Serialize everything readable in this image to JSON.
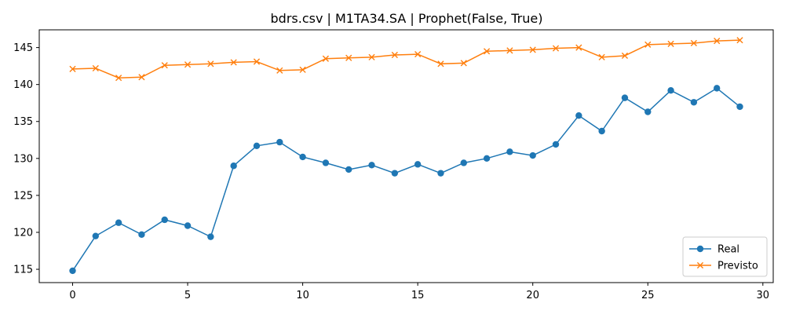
{
  "chart_data": {
    "type": "line",
    "title": "bdrs.csv | M1TA34.SA | Prophet(False, True)",
    "xlabel": "",
    "ylabel": "",
    "xlim": [
      -1.45,
      30.45
    ],
    "ylim": [
      113.2,
      147.4
    ],
    "xticks": [
      0,
      5,
      10,
      15,
      20,
      25,
      30
    ],
    "yticks": [
      115,
      120,
      125,
      130,
      135,
      140,
      145
    ],
    "grid": false,
    "legend_position": "lower-right",
    "x": [
      0,
      1,
      2,
      3,
      4,
      5,
      6,
      7,
      8,
      9,
      10,
      11,
      12,
      13,
      14,
      15,
      16,
      17,
      18,
      19,
      20,
      21,
      22,
      23,
      24,
      25,
      26,
      27,
      28,
      29
    ],
    "series": [
      {
        "name": "Real",
        "color": "#1f77b4",
        "marker": "circle",
        "values": [
          114.8,
          119.5,
          121.3,
          119.7,
          121.7,
          120.9,
          119.4,
          129.0,
          131.7,
          132.2,
          130.2,
          129.4,
          128.5,
          129.1,
          128.0,
          129.2,
          128.0,
          129.4,
          130.0,
          130.9,
          130.4,
          131.9,
          135.8,
          133.7,
          138.2,
          136.3,
          139.2,
          137.6,
          139.5,
          137.0
        ]
      },
      {
        "name": "Previsto",
        "color": "#ff7f0e",
        "marker": "x",
        "values": [
          142.1,
          142.2,
          140.9,
          141.0,
          142.6,
          142.7,
          142.8,
          143.0,
          143.1,
          141.9,
          142.0,
          143.5,
          143.6,
          143.7,
          144.0,
          144.1,
          142.8,
          142.9,
          144.5,
          144.6,
          144.7,
          144.9,
          145.0,
          143.7,
          143.9,
          145.4,
          145.5,
          145.6,
          145.9,
          146.0
        ]
      }
    ]
  }
}
